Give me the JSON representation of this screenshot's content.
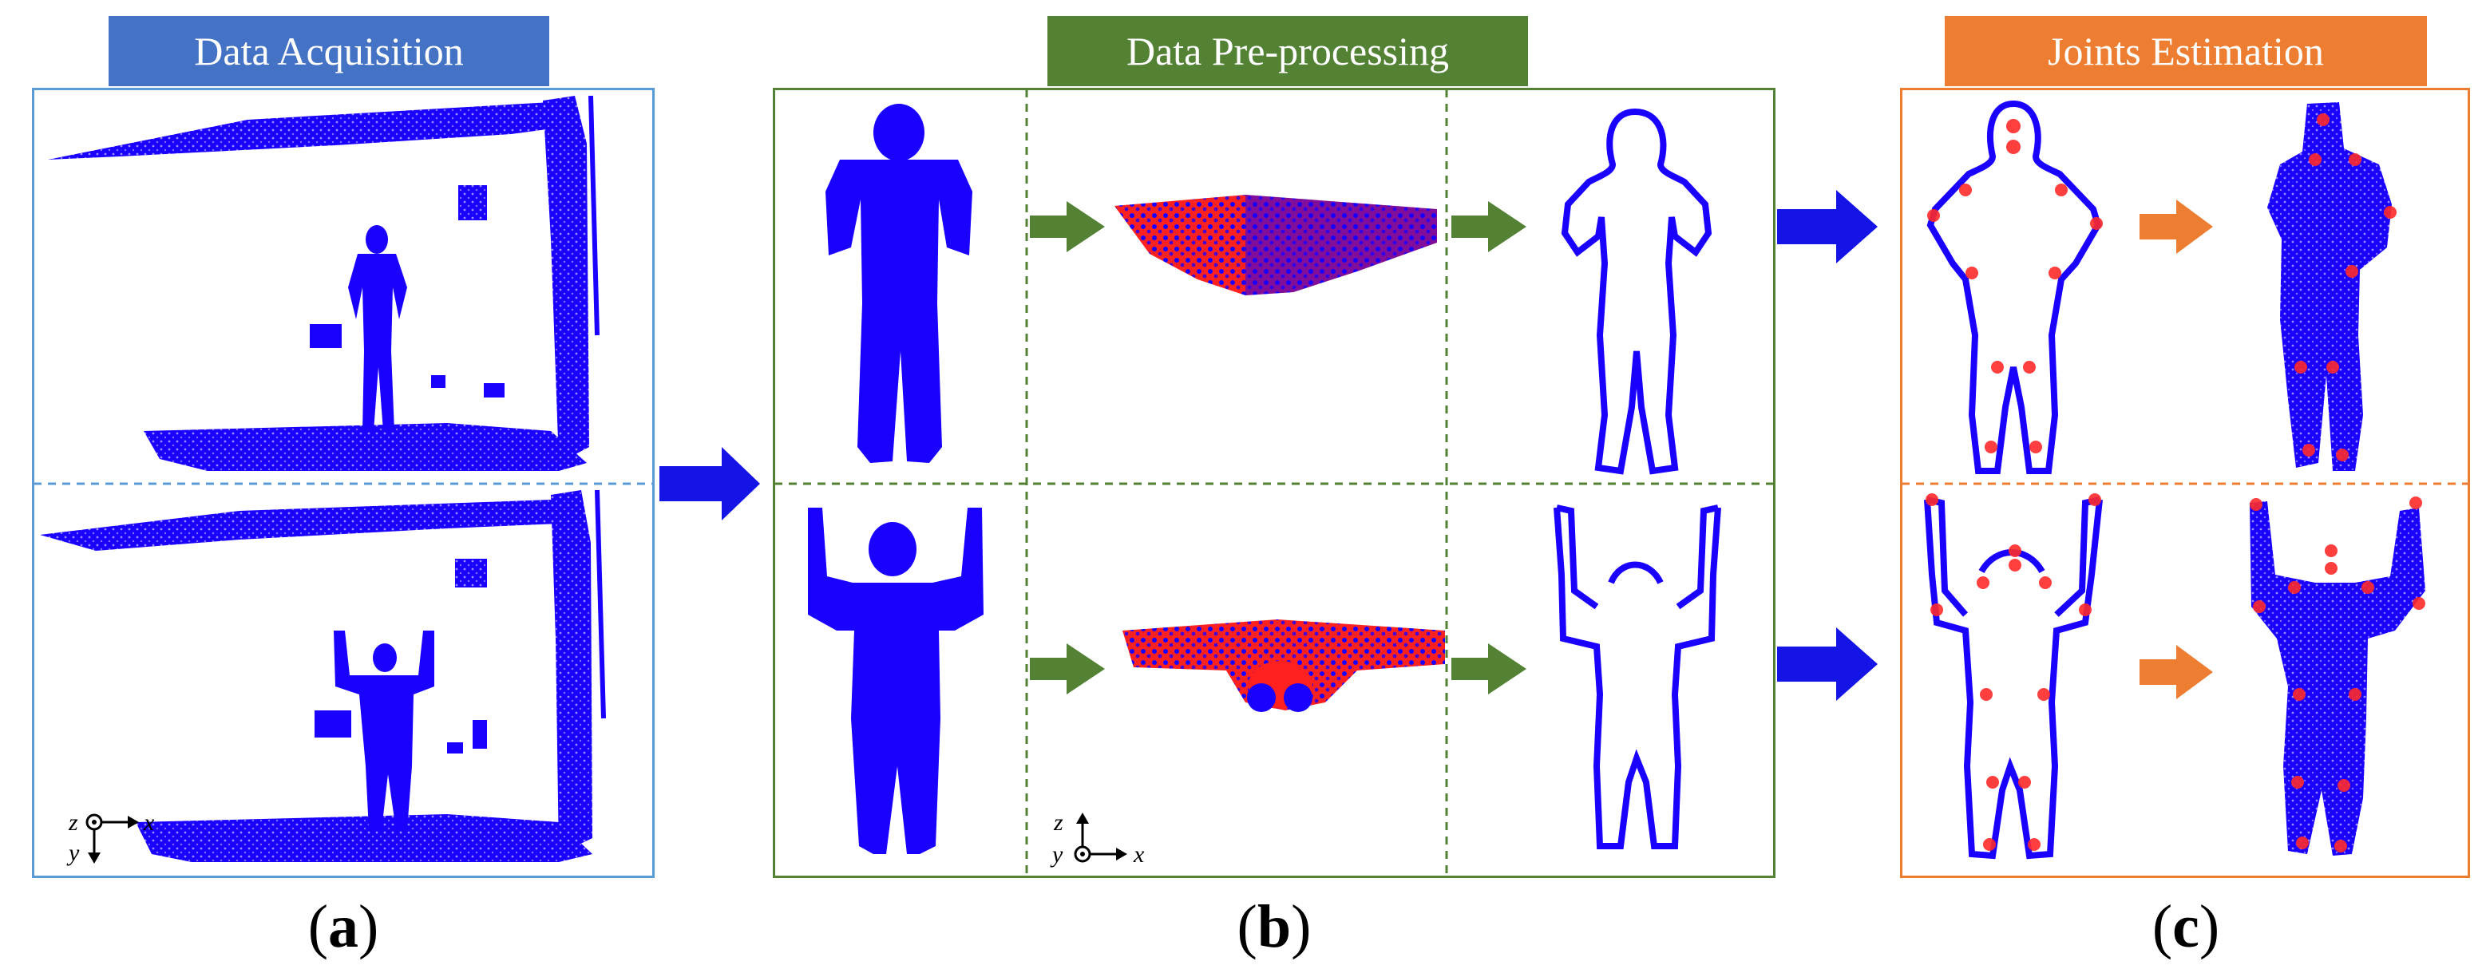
{
  "sections": [
    {
      "title": "Data Acquisition",
      "color": "#4472C4",
      "label": "a"
    },
    {
      "title": "Data Pre-processing",
      "color": "#548235",
      "label": "b"
    },
    {
      "title": "Joints Estimation",
      "color": "#ED7D31",
      "label": "c"
    }
  ],
  "axes": {
    "a": {
      "h": "x",
      "v": "y",
      "o": "z"
    },
    "b": {
      "h": "x",
      "v": "z",
      "o": "y"
    }
  },
  "colors": {
    "cloud": "#1a00ff",
    "red": "#ff1a1a",
    "arrow_blue": "#1414e6",
    "arrow_green": "#548235",
    "arrow_orange": "#ED7D31"
  }
}
